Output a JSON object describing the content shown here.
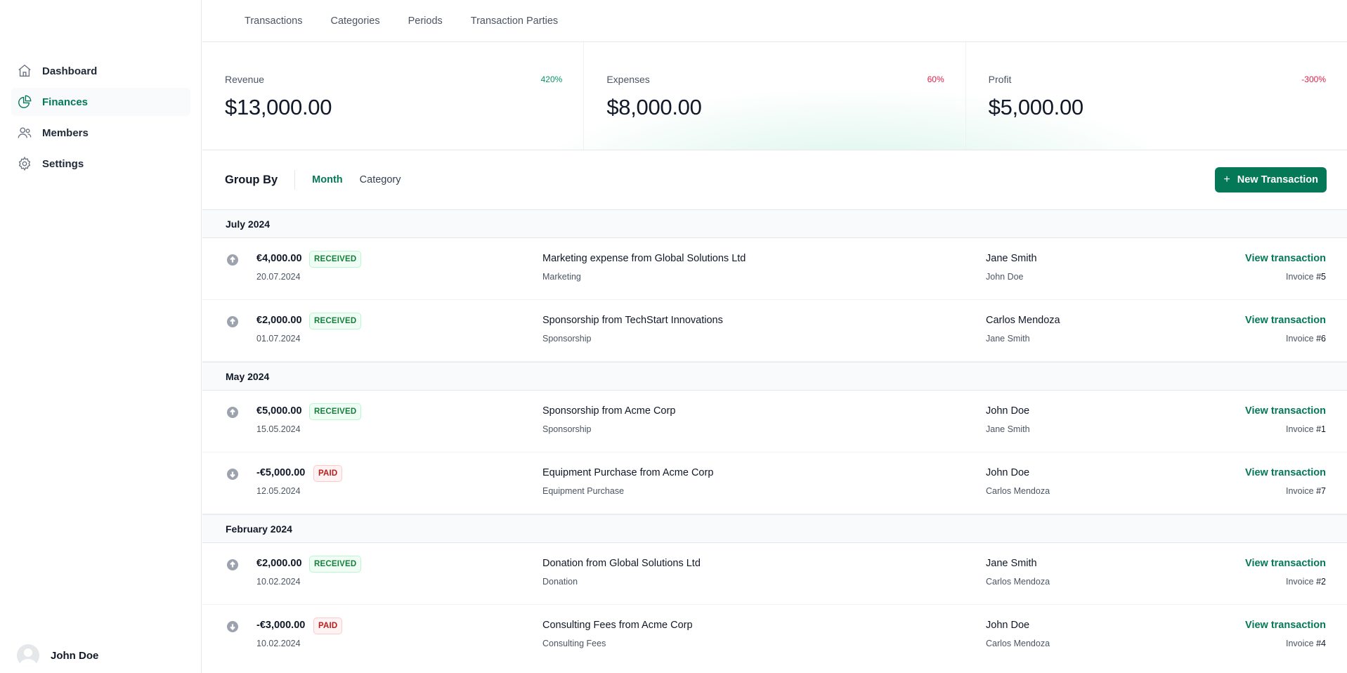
{
  "sidebar": {
    "items": [
      {
        "label": "Dashboard",
        "icon": "home-icon",
        "active": false
      },
      {
        "label": "Finances",
        "icon": "chart-pie-icon",
        "active": true
      },
      {
        "label": "Members",
        "icon": "users-icon",
        "active": false
      },
      {
        "label": "Settings",
        "icon": "gear-icon",
        "active": false
      }
    ],
    "user": {
      "name": "John Doe"
    }
  },
  "topnav": {
    "tabs": [
      "Transactions",
      "Categories",
      "Periods",
      "Transaction Parties"
    ]
  },
  "stats": [
    {
      "label": "Revenue",
      "change": "420%",
      "trend": "up",
      "value": "$13,000.00"
    },
    {
      "label": "Expenses",
      "change": "60%",
      "trend": "down",
      "value": "$8,000.00"
    },
    {
      "label": "Profit",
      "change": "-300%",
      "trend": "down",
      "value": "$5,000.00"
    }
  ],
  "group_by": {
    "title": "Group By",
    "options": [
      {
        "label": "Month",
        "active": true
      },
      {
        "label": "Category",
        "active": false
      }
    ],
    "new_button": "New Transaction"
  },
  "groups": [
    {
      "title": "July 2024",
      "rows": [
        {
          "direction": "up",
          "amount": "€4,000.00",
          "status": "RECEIVED",
          "date": "20.07.2024",
          "description": "Marketing expense from Global Solutions Ltd",
          "category": "Marketing",
          "party": "Jane Smith",
          "member": "John Doe",
          "action": "View transaction",
          "invoice_label": "Invoice",
          "invoice_number": "#5"
        },
        {
          "direction": "up",
          "amount": "€2,000.00",
          "status": "RECEIVED",
          "date": "01.07.2024",
          "description": "Sponsorship from TechStart Innovations",
          "category": "Sponsorship",
          "party": "Carlos Mendoza",
          "member": "Jane Smith",
          "action": "View transaction",
          "invoice_label": "Invoice",
          "invoice_number": "#6"
        }
      ]
    },
    {
      "title": "May 2024",
      "rows": [
        {
          "direction": "up",
          "amount": "€5,000.00",
          "status": "RECEIVED",
          "date": "15.05.2024",
          "description": "Sponsorship from Acme Corp",
          "category": "Sponsorship",
          "party": "John Doe",
          "member": "Jane Smith",
          "action": "View transaction",
          "invoice_label": "Invoice",
          "invoice_number": "#1"
        },
        {
          "direction": "down",
          "amount": "-€5,000.00",
          "status": "PAID",
          "date": "12.05.2024",
          "description": "Equipment Purchase from Acme Corp",
          "category": "Equipment Purchase",
          "party": "John Doe",
          "member": "Carlos Mendoza",
          "action": "View transaction",
          "invoice_label": "Invoice",
          "invoice_number": "#7"
        }
      ]
    },
    {
      "title": "February 2024",
      "rows": [
        {
          "direction": "up",
          "amount": "€2,000.00",
          "status": "RECEIVED",
          "date": "10.02.2024",
          "description": "Donation from Global Solutions Ltd",
          "category": "Donation",
          "party": "Jane Smith",
          "member": "Carlos Mendoza",
          "action": "View transaction",
          "invoice_label": "Invoice",
          "invoice_number": "#2"
        },
        {
          "direction": "down",
          "amount": "-€3,000.00",
          "status": "PAID",
          "date": "10.02.2024",
          "description": "Consulting Fees from Acme Corp",
          "category": "Consulting Fees",
          "party": "John Doe",
          "member": "Carlos Mendoza",
          "action": "View transaction",
          "invoice_label": "Invoice",
          "invoice_number": "#4"
        }
      ]
    }
  ],
  "colors": {
    "accent": "#047857",
    "positive": "#059669",
    "negative": "#e11d48"
  }
}
